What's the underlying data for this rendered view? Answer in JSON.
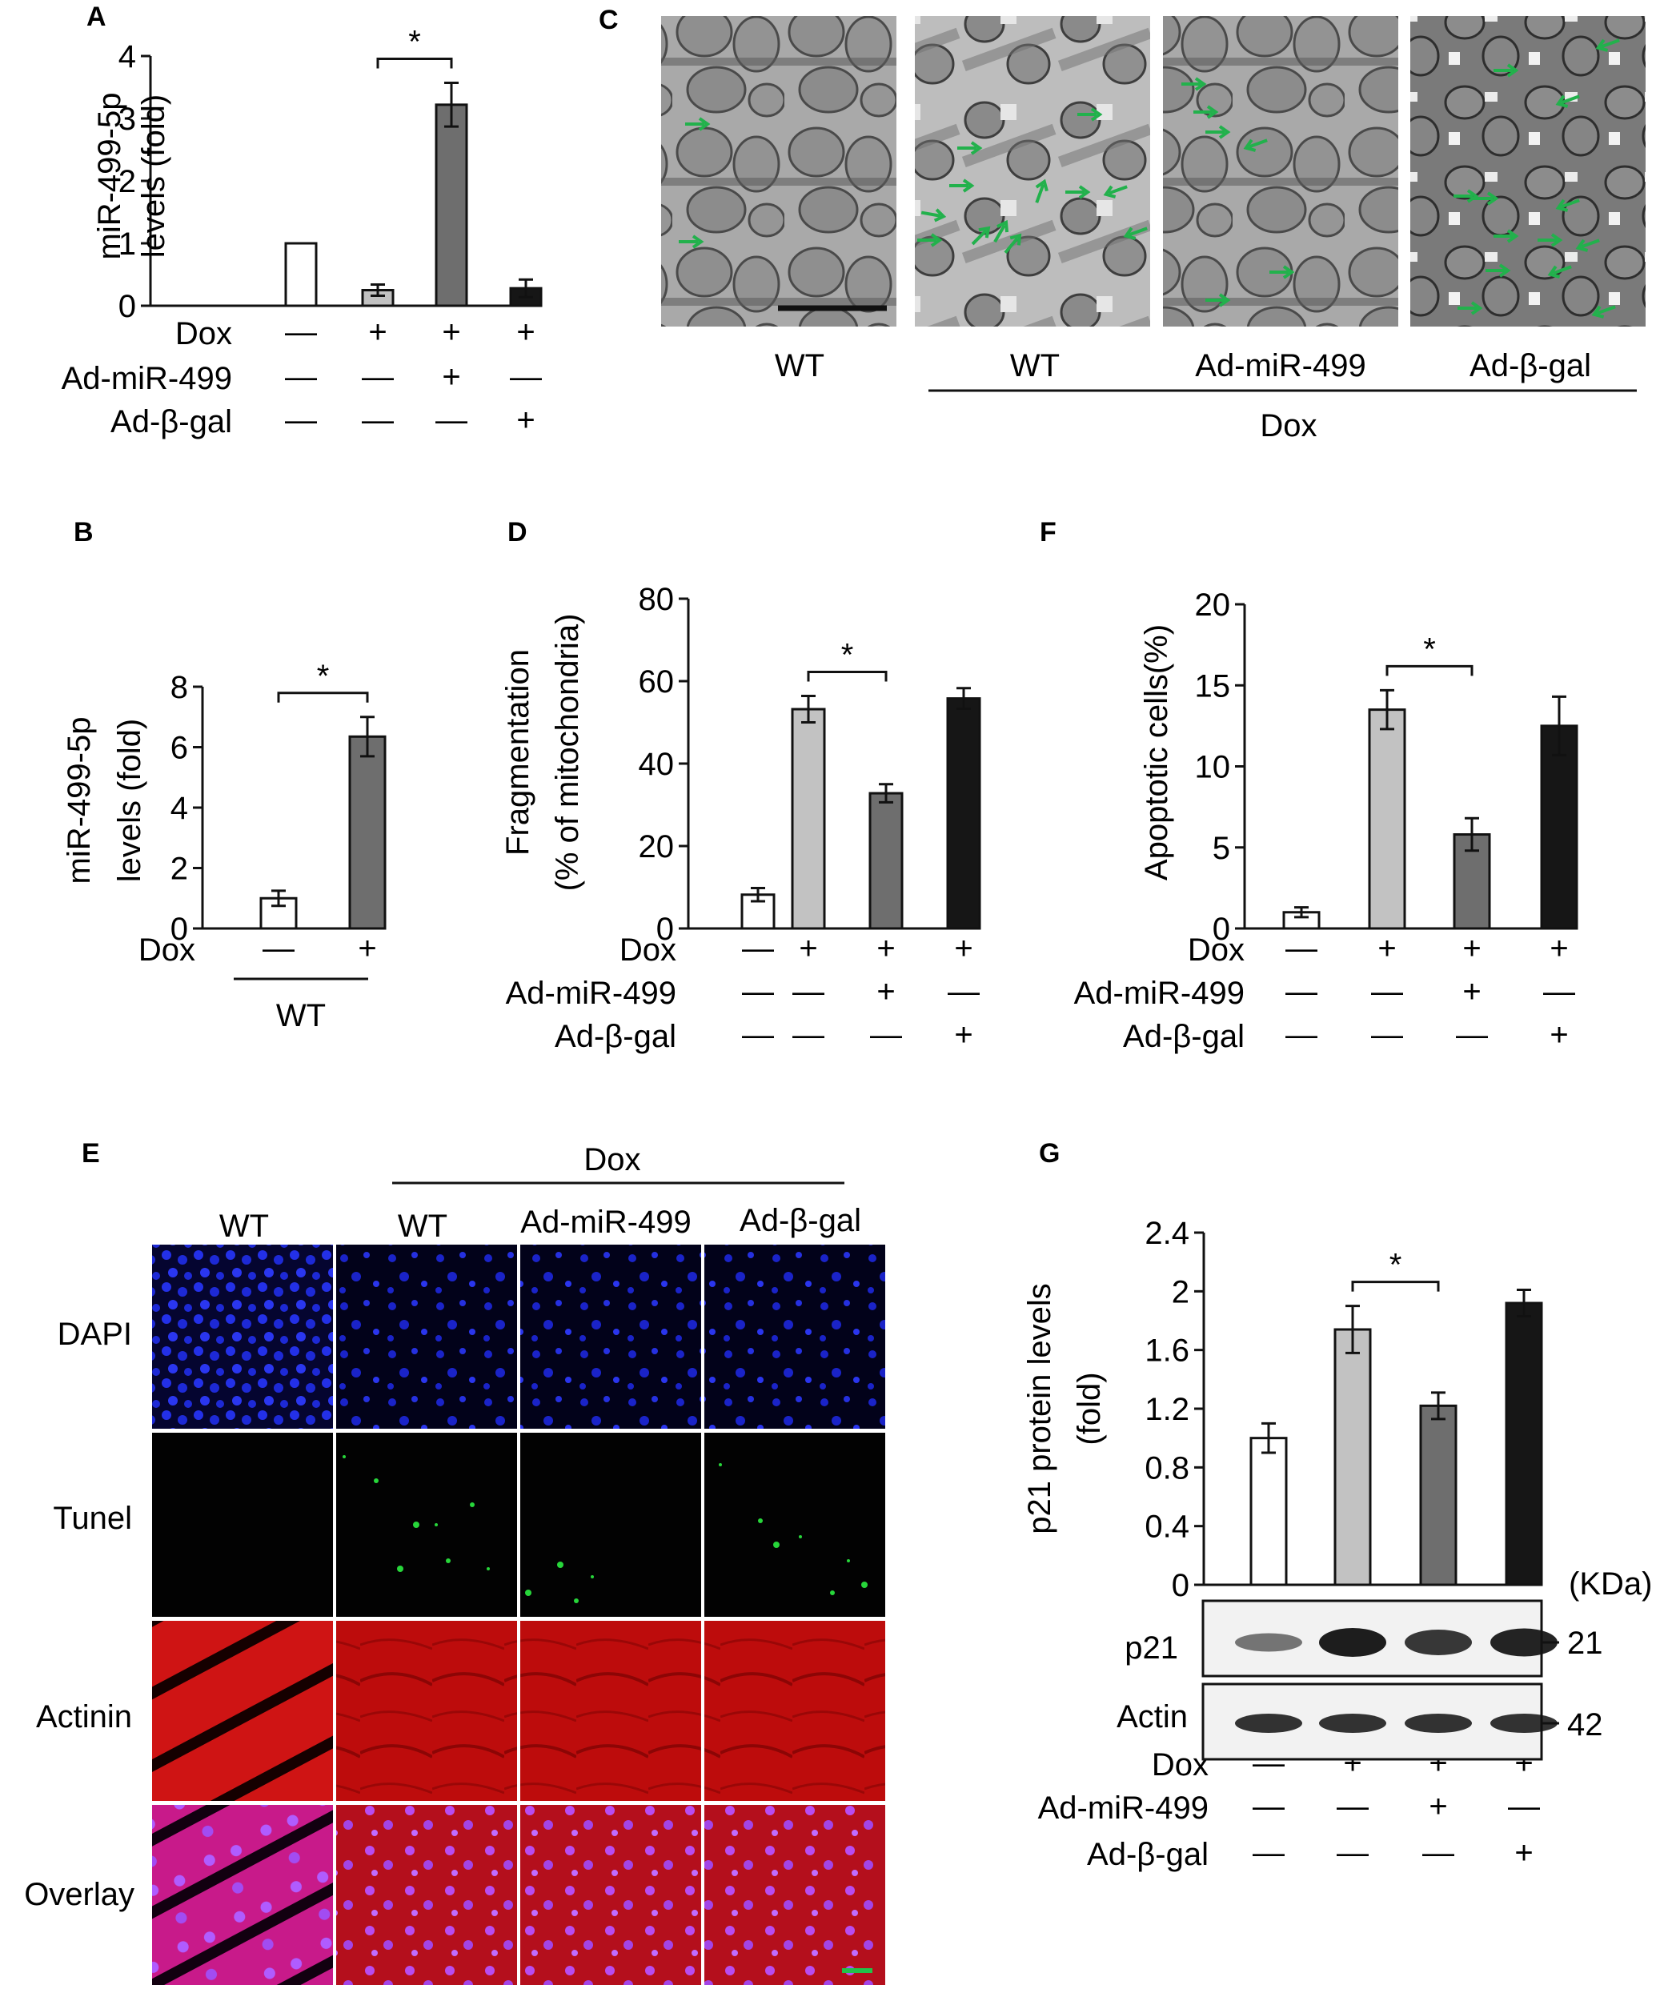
{
  "panels": {
    "A": {
      "label": "A"
    },
    "B": {
      "label": "B"
    },
    "C": {
      "label": "C",
      "images": [
        "WT",
        "WT",
        "Ad-miR-499",
        "Ad-β-gal"
      ],
      "group": "Dox"
    },
    "D": {
      "label": "D"
    },
    "E": {
      "label": "E",
      "group": "Dox",
      "columns": [
        "WT",
        "WT",
        "Ad-miR-499",
        "Ad-β-gal"
      ],
      "rows": [
        "DAPI",
        "Tunel",
        "Actinin",
        "Overlay"
      ]
    },
    "F": {
      "label": "F"
    },
    "G": {
      "label": "G",
      "kda_label": "(KDa)",
      "blots": [
        {
          "name": "p21",
          "kda": "21"
        },
        {
          "name": "Actin",
          "kda": "42"
        }
      ]
    }
  },
  "colors": {
    "bar_white": "#ffffff",
    "bar_light": "#c2c2c2",
    "bar_mid": "#6e6e6e",
    "bar_dark": "#161616",
    "arrow_green": "#22b14c",
    "dapi_blue": "#1a23c8",
    "tunel_green": "#27d63a",
    "actinin_red": "#c81010"
  },
  "chart_data": [
    {
      "id": "A",
      "type": "bar",
      "ylabel": "miR-499-5p levels (fold)",
      "ylim": [
        0,
        4
      ],
      "yticks": [
        "0",
        "1",
        "2",
        "3",
        "4"
      ],
      "values": [
        1.0,
        0.25,
        3.22,
        0.28
      ],
      "errors": [
        0,
        0.09,
        0.35,
        0.14
      ],
      "bar_colors": [
        "#ffffff",
        "#c2c2c2",
        "#6e6e6e",
        "#161616"
      ],
      "significance": {
        "from": 1,
        "to": 2,
        "label": "*"
      },
      "conditions": [
        {
          "name": "Dox",
          "signs": [
            "—",
            "+",
            "+",
            "+"
          ]
        },
        {
          "name": "Ad-miR-499",
          "signs": [
            "—",
            "—",
            "+",
            "—"
          ]
        },
        {
          "name": "Ad-β-gal",
          "signs": [
            "—",
            "—",
            "—",
            "+"
          ]
        }
      ]
    },
    {
      "id": "B",
      "type": "bar",
      "ylabel": "miR-499-5p levels (fold)",
      "ylim": [
        0,
        8
      ],
      "yticks": [
        "0",
        "2",
        "4",
        "6",
        "8"
      ],
      "values": [
        1.0,
        6.35
      ],
      "errors": [
        0.25,
        0.65
      ],
      "bar_colors": [
        "#ffffff",
        "#6e6e6e"
      ],
      "significance": {
        "from": 0,
        "to": 1,
        "label": "*"
      },
      "conditions": [
        {
          "name": "Dox",
          "signs": [
            "—",
            "+"
          ]
        }
      ],
      "group_label": "WT"
    },
    {
      "id": "D",
      "type": "bar",
      "ylabel": "Fragmentation (% of mitochondria)",
      "ylim": [
        0,
        80
      ],
      "yticks": [
        "0",
        "20",
        "40",
        "60",
        "80"
      ],
      "values": [
        8.2,
        53.2,
        32.8,
        55.8
      ],
      "errors": [
        1.6,
        3.2,
        2.2,
        2.5
      ],
      "bar_colors": [
        "#ffffff",
        "#c2c2c2",
        "#6e6e6e",
        "#161616"
      ],
      "significance": {
        "from": 1,
        "to": 2,
        "label": "*"
      },
      "conditions": [
        {
          "name": "Dox",
          "signs": [
            "—",
            "+",
            "+",
            "+"
          ]
        },
        {
          "name": "Ad-miR-499",
          "signs": [
            "—",
            "—",
            "+",
            "—"
          ]
        },
        {
          "name": "Ad-β-gal",
          "signs": [
            "—",
            "—",
            "—",
            "+"
          ]
        }
      ]
    },
    {
      "id": "F",
      "type": "bar",
      "ylabel": "Apoptotic cells(%)",
      "ylim": [
        0,
        20
      ],
      "yticks": [
        "0",
        "5",
        "10",
        "15",
        "20"
      ],
      "values": [
        1.0,
        13.5,
        5.8,
        12.5
      ],
      "errors": [
        0.3,
        1.2,
        1.0,
        1.8
      ],
      "bar_colors": [
        "#ffffff",
        "#c2c2c2",
        "#6e6e6e",
        "#161616"
      ],
      "significance": {
        "from": 1,
        "to": 2,
        "label": "*"
      },
      "conditions": [
        {
          "name": "Dox",
          "signs": [
            "—",
            "+",
            "+",
            "+"
          ]
        },
        {
          "name": "Ad-miR-499",
          "signs": [
            "—",
            "—",
            "+",
            "—"
          ]
        },
        {
          "name": "Ad-β-gal",
          "signs": [
            "—",
            "—",
            "—",
            "+"
          ]
        }
      ]
    },
    {
      "id": "G",
      "type": "bar",
      "ylabel": "p21 protein levels (fold)",
      "ylim": [
        0,
        2.4
      ],
      "yticks": [
        "0",
        "0.4",
        "0.8",
        "1.2",
        "1.6",
        "2",
        "2.4"
      ],
      "values": [
        1.0,
        1.74,
        1.22,
        1.92
      ],
      "errors": [
        0.1,
        0.16,
        0.09,
        0.09
      ],
      "bar_colors": [
        "#ffffff",
        "#c2c2c2",
        "#6e6e6e",
        "#161616"
      ],
      "significance": {
        "from": 1,
        "to": 2,
        "label": "*"
      },
      "conditions": [
        {
          "name": "Dox",
          "signs": [
            "—",
            "+",
            "+",
            "+"
          ]
        },
        {
          "name": "Ad-miR-499",
          "signs": [
            "—",
            "—",
            "+",
            "—"
          ]
        },
        {
          "name": "Ad-β-gal",
          "signs": [
            "—",
            "—",
            "—",
            "+"
          ]
        }
      ]
    }
  ]
}
